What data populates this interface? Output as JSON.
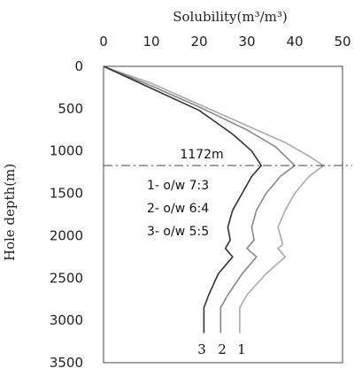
{
  "chart_data": {
    "type": "line",
    "title": "",
    "xlabel": "Solubility(m³/m³)",
    "ylabel": "Hole depth(m)",
    "xlim": [
      0,
      50
    ],
    "ylim": [
      3500,
      0
    ],
    "x_ticks": [
      "0",
      "10",
      "20",
      "30",
      "40",
      "50"
    ],
    "y_ticks": [
      "0",
      "500",
      "1000",
      "1500",
      "2000",
      "2500",
      "3000",
      "3500"
    ],
    "grid": false,
    "series": [
      {
        "name": "1",
        "color": "#aaaaaa",
        "points": [
          [
            0,
            0
          ],
          [
            10,
            200
          ],
          [
            20,
            450
          ],
          [
            30,
            700
          ],
          [
            38,
            900
          ],
          [
            43,
            1060
          ],
          [
            46,
            1172
          ],
          [
            43,
            1300
          ],
          [
            40,
            1500
          ],
          [
            38,
            1700
          ],
          [
            36.5,
            1900
          ],
          [
            37.5,
            2100
          ],
          [
            36.5,
            2150
          ],
          [
            38,
            2250
          ],
          [
            34,
            2450
          ],
          [
            30,
            2700
          ],
          [
            28.5,
            2850
          ],
          [
            28.5,
            3150
          ]
        ]
      },
      {
        "name": "2",
        "color": "#888888",
        "points": [
          [
            0,
            0
          ],
          [
            10,
            230
          ],
          [
            20,
            480
          ],
          [
            30,
            750
          ],
          [
            36,
            950
          ],
          [
            40,
            1172
          ],
          [
            37,
            1300
          ],
          [
            34,
            1500
          ],
          [
            32,
            1700
          ],
          [
            31,
            1900
          ],
          [
            31.5,
            2050
          ],
          [
            30,
            2150
          ],
          [
            32,
            2250
          ],
          [
            29,
            2450
          ],
          [
            26,
            2700
          ],
          [
            24.5,
            2850
          ],
          [
            24.5,
            3150
          ]
        ]
      },
      {
        "name": "3",
        "color": "#333333",
        "points": [
          [
            0,
            0
          ],
          [
            10,
            260
          ],
          [
            20,
            520
          ],
          [
            27,
            800
          ],
          [
            31,
            1000
          ],
          [
            33,
            1172
          ],
          [
            31,
            1300
          ],
          [
            29,
            1500
          ],
          [
            27,
            1700
          ],
          [
            26,
            1900
          ],
          [
            26.5,
            2050
          ],
          [
            25.5,
            2150
          ],
          [
            27,
            2250
          ],
          [
            24,
            2450
          ],
          [
            22,
            2700
          ],
          [
            21,
            2850
          ],
          [
            21,
            3150
          ]
        ]
      }
    ],
    "reference_line": {
      "depth": 1172,
      "label": "1172m",
      "style": "dash-dot"
    },
    "legend": [
      {
        "num": "1-",
        "text": "o/w 7:3"
      },
      {
        "num": "2-",
        "text": "o/w 6:4"
      },
      {
        "num": "3-",
        "text": "o/w 5:5"
      }
    ],
    "curve_labels": [
      "1",
      "2",
      "3"
    ]
  }
}
